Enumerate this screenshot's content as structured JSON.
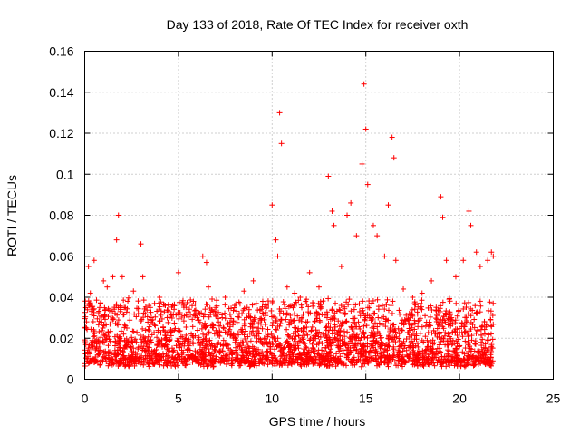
{
  "chart_data": {
    "type": "scatter",
    "title": "Day 133 of 2018, Rate Of TEC Index for receiver oxth",
    "xlabel": "GPS time / hours",
    "ylabel": "ROTI / TECUs",
    "xlim": [
      0,
      25
    ],
    "ylim": [
      0,
      0.16
    ],
    "xticks": [
      "0",
      "5",
      "10",
      "15",
      "20",
      "25"
    ],
    "yticks": [
      "0",
      "0.02",
      "0.04",
      "0.06",
      "0.08",
      "0.1",
      "0.12",
      "0.14",
      "0.16"
    ],
    "grid": true,
    "marker": "+",
    "color": "#ff0000",
    "series": [
      {
        "x": [
          0.1,
          0.2,
          0.3,
          0.5,
          0.8,
          1.0,
          1.2,
          1.5,
          1.7,
          1.8,
          2.0,
          2.3,
          2.6,
          3.0,
          3.1,
          3.5,
          4.0,
          4.5,
          5.0,
          5.3,
          5.8,
          6.3,
          6.5,
          6.6,
          7.0,
          7.5,
          8.0,
          8.5,
          9.0,
          9.5,
          10.0,
          10.2,
          10.3,
          10.4,
          10.5,
          10.8,
          11.2,
          11.5,
          12.0,
          12.5,
          13.0,
          13.2,
          13.3,
          13.7,
          14.0,
          14.2,
          14.5,
          14.8,
          14.9,
          15.0,
          15.1,
          15.4,
          15.6,
          16.0,
          16.2,
          16.4,
          16.5,
          16.6,
          17.0,
          17.5,
          18.0,
          18.5,
          19.0,
          19.1,
          19.3,
          19.8,
          20.2,
          20.5,
          20.6,
          20.9,
          21.1,
          21.5,
          21.7,
          21.8
        ],
        "y": [
          0.028,
          0.055,
          0.042,
          0.058,
          0.035,
          0.048,
          0.045,
          0.05,
          0.068,
          0.08,
          0.05,
          0.038,
          0.043,
          0.066,
          0.05,
          0.035,
          0.04,
          0.033,
          0.052,
          0.036,
          0.038,
          0.06,
          0.057,
          0.045,
          0.035,
          0.04,
          0.036,
          0.043,
          0.048,
          0.038,
          0.085,
          0.068,
          0.06,
          0.13,
          0.115,
          0.045,
          0.042,
          0.04,
          0.052,
          0.045,
          0.099,
          0.082,
          0.075,
          0.055,
          0.08,
          0.086,
          0.07,
          0.105,
          0.144,
          0.122,
          0.095,
          0.075,
          0.07,
          0.06,
          0.085,
          0.118,
          0.108,
          0.058,
          0.044,
          0.04,
          0.042,
          0.048,
          0.089,
          0.079,
          0.058,
          0.05,
          0.058,
          0.082,
          0.075,
          0.062,
          0.055,
          0.058,
          0.062,
          0.06
        ]
      }
    ]
  }
}
